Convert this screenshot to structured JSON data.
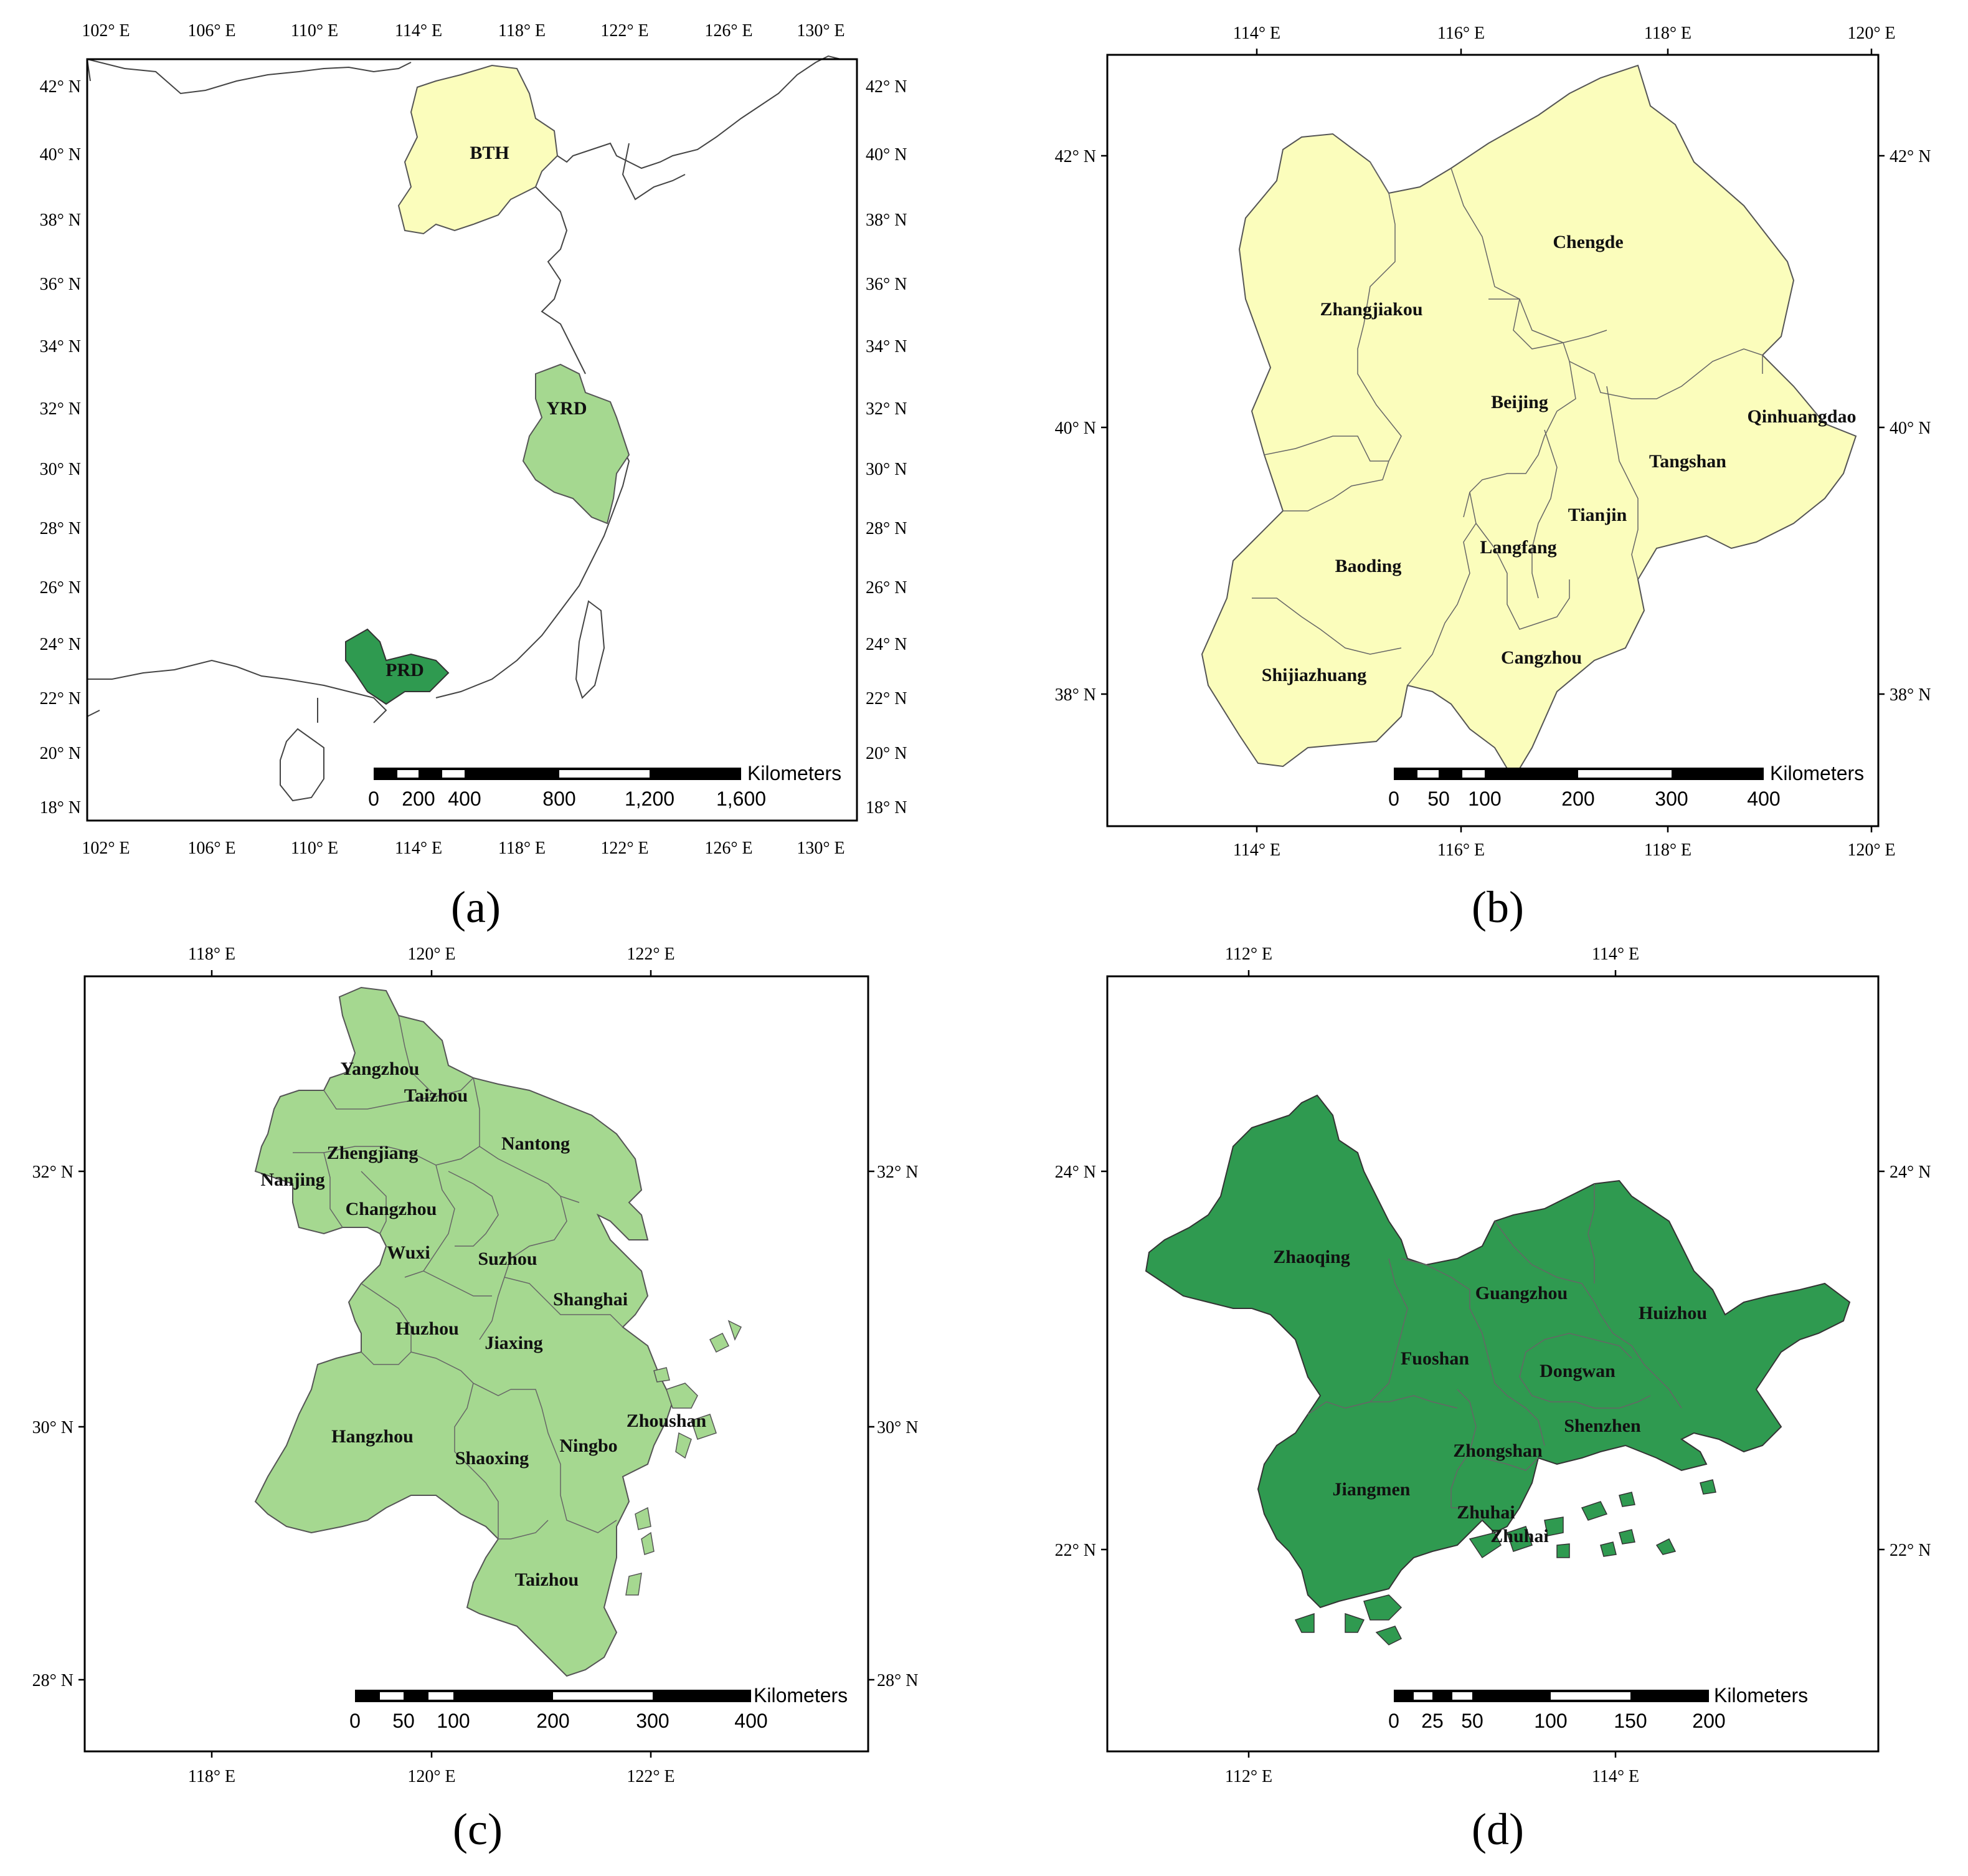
{
  "colors": {
    "bth": "#fbfdbc",
    "yrd": "#a5d890",
    "prd": "#2f9a50"
  },
  "panels": {
    "a": {
      "caption": "(a)",
      "lon_ticks": [
        "102° E",
        "106° E",
        "110° E",
        "114° E",
        "118° E",
        "122° E",
        "126° E",
        "130° E"
      ],
      "lat_ticks": [
        "42° N",
        "40° N",
        "38° N",
        "36° N",
        "34° N",
        "32° N",
        "30° N",
        "28° N",
        "26° N",
        "24° N",
        "22° N",
        "20° N",
        "18° N"
      ],
      "regions": [
        "BTH",
        "YRD",
        "PRD"
      ],
      "scalebar": {
        "unit": "Kilometers",
        "labels": [
          "0",
          "200",
          "400",
          "800",
          "1,200",
          "1,600"
        ]
      }
    },
    "b": {
      "caption": "(b)",
      "lon_ticks": [
        "114° E",
        "116° E",
        "118° E",
        "120° E"
      ],
      "lat_ticks": [
        "42° N",
        "40° N",
        "38° N"
      ],
      "cities": [
        "Zhangjiakou",
        "Chengde",
        "Beijing",
        "Qinhuangdao",
        "Tangshan",
        "Tianjin",
        "Langfang",
        "Baoding",
        "Cangzhou",
        "Shijiazhuang"
      ],
      "scalebar": {
        "unit": "Kilometers",
        "labels": [
          "0",
          "50",
          "100",
          "200",
          "300",
          "400"
        ]
      }
    },
    "c": {
      "caption": "(c)",
      "lon_ticks": [
        "118° E",
        "120° E",
        "122° E"
      ],
      "lat_ticks": [
        "32° N",
        "30° N",
        "28° N"
      ],
      "cities": [
        "Yangzhou",
        "Taizhou",
        "Nantong",
        "Zhengjiang",
        "Nanjing",
        "Changzhou",
        "Wuxi",
        "Suzhou",
        "Shanghai",
        "Huzhou",
        "Jiaxing",
        "Hangzhou",
        "Shaoxing",
        "Ningbo",
        "Zhoushan",
        "Taizhou"
      ],
      "scalebar": {
        "unit": "Kilometers",
        "labels": [
          "0",
          "50",
          "100",
          "200",
          "300",
          "400"
        ]
      }
    },
    "d": {
      "caption": "(d)",
      "lon_ticks": [
        "112° E",
        "114° E"
      ],
      "lat_ticks": [
        "24° N",
        "22° N"
      ],
      "cities": [
        "Zhaoqing",
        "Guangzhou",
        "Huizhou",
        "Fuoshan",
        "Dongwan",
        "Shenzhen",
        "Zhongshan",
        "Jiangmen",
        "Zhuhai",
        "Zhuhai"
      ],
      "scalebar": {
        "unit": "Kilometers",
        "labels": [
          "0",
          "25",
          "50",
          "100",
          "150",
          "200"
        ]
      }
    }
  }
}
